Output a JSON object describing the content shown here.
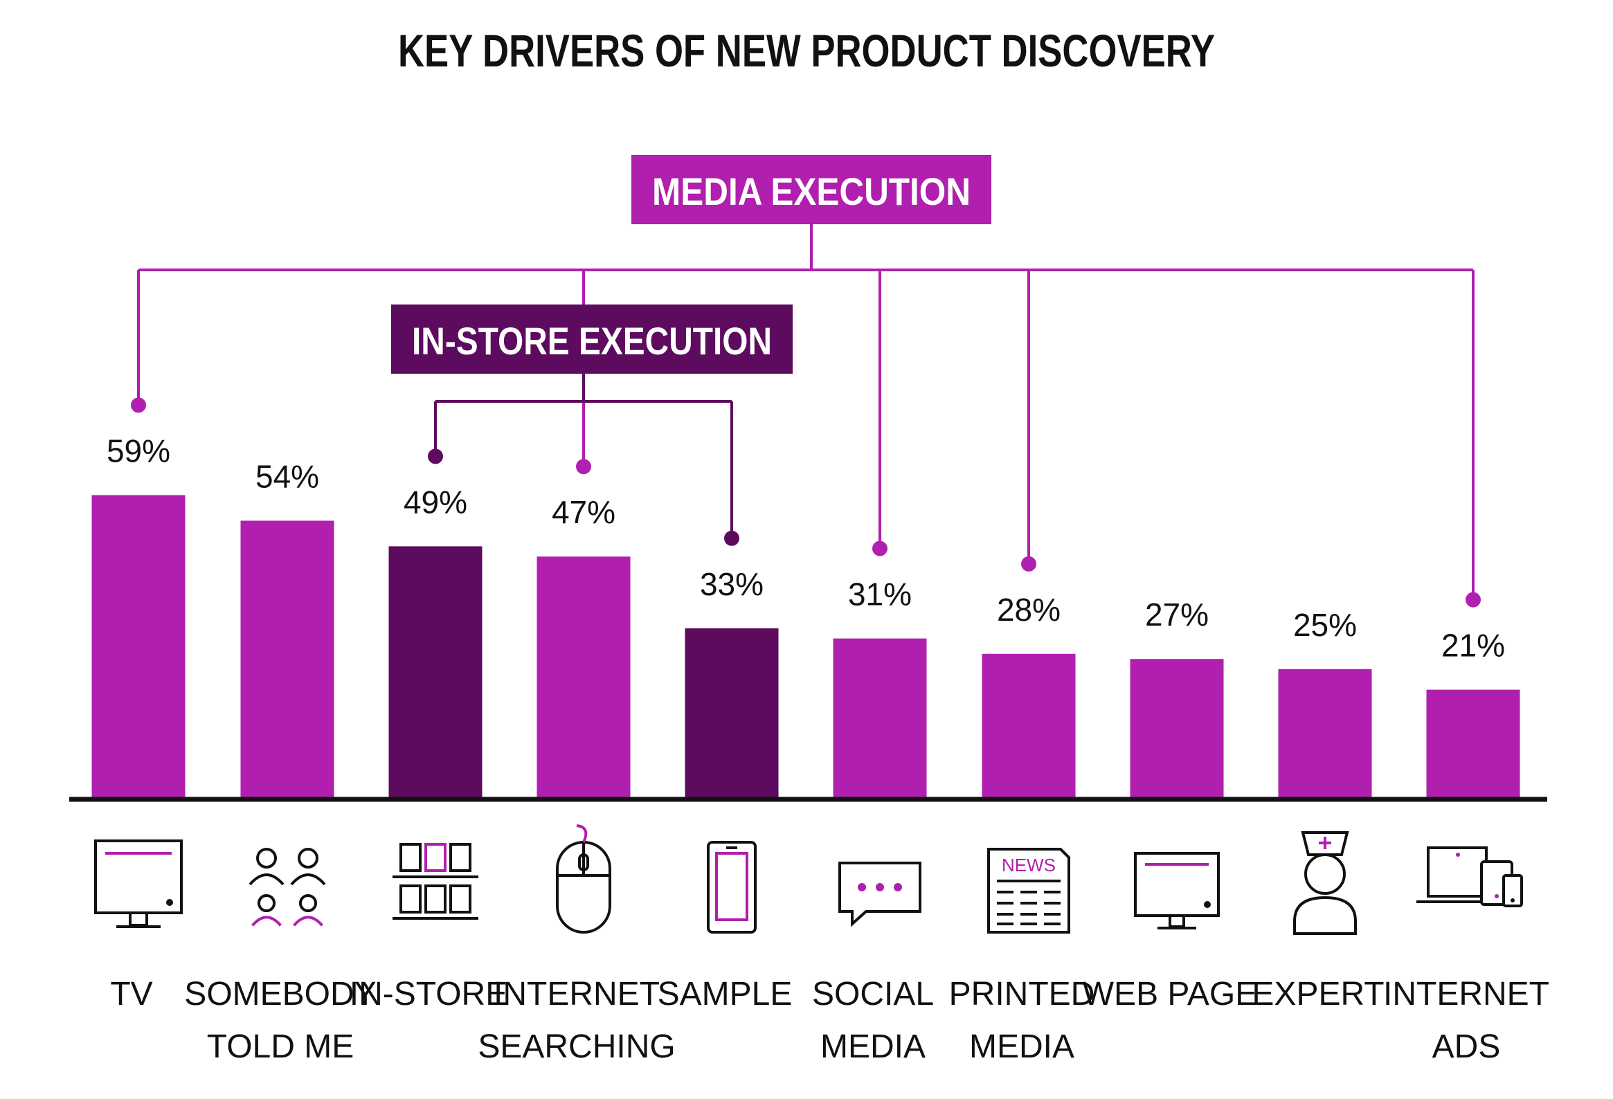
{
  "chart_data": {
    "type": "bar",
    "title": "KEY DRIVERS OF NEW PRODUCT DISCOVERY",
    "xlabel": "",
    "ylabel": "",
    "ylim": [
      0,
      100
    ],
    "categories": [
      [
        "TV"
      ],
      [
        "SOMEBODY",
        "TOLD ME"
      ],
      [
        "IN-STORE"
      ],
      [
        "INTERNET",
        "SEARCHING"
      ],
      [
        "SAMPLE"
      ],
      [
        "SOCIAL",
        "MEDIA"
      ],
      [
        "PRINTED",
        "MEDIA"
      ],
      [
        "WEB PAGE"
      ],
      [
        "EXPERT"
      ],
      [
        "INTERNET",
        "ADS"
      ]
    ],
    "values": [
      59,
      54,
      49,
      47,
      33,
      31,
      28,
      27,
      25,
      21
    ],
    "value_labels": [
      "59%",
      "54%",
      "49%",
      "47%",
      "33%",
      "31%",
      "28%",
      "27%",
      "25%",
      "21%"
    ],
    "groups": [
      {
        "label": "MEDIA EXECUTION",
        "color": "#B01FAE",
        "members": [
          0,
          3,
          5,
          6,
          9
        ]
      },
      {
        "label": "IN-STORE EXECUTION",
        "color": "#5C0B5E",
        "members": [
          2,
          4
        ]
      }
    ],
    "icons": [
      "tv-icon",
      "people-icon",
      "store-shelf-icon",
      "mouse-icon",
      "phone-icon",
      "chat-bubble-icon",
      "newspaper-icon",
      "monitor-icon",
      "nurse-icon",
      "devices-icon"
    ],
    "icon_news_text": "NEWS",
    "colors": {
      "primary": "#B01FAE",
      "dark": "#5C0B5E",
      "axis": "#111111",
      "text": "#111111"
    }
  }
}
